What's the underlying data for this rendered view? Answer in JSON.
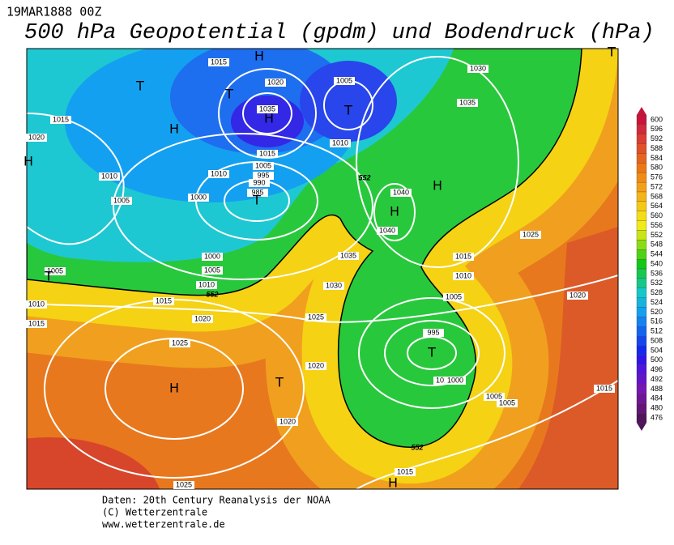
{
  "header": {
    "date": "19MAR1888 00Z",
    "title": "500 hPa Geopotential (gpdm) und Bodendruck (hPa)"
  },
  "isobar_labels": [
    1015,
    1020,
    1005,
    1035,
    1015,
    1020,
    1010,
    1015,
    1005,
    995,
    990,
    985,
    1010,
    1010,
    1005,
    1000,
    1030,
    1035,
    1040,
    1040,
    1025,
    1035,
    1030,
    1015,
    1010,
    1005,
    1020,
    1000,
    1005,
    1010,
    1005,
    1010,
    1015,
    1015,
    1020,
    1025,
    995,
    1020,
    1010,
    1000,
    1025,
    1020,
    1005,
    1005,
    1015,
    1015,
    1025
  ],
  "height_labels": [
    552,
    552,
    552
  ],
  "centers": [
    "H",
    "T",
    "T",
    "H",
    "T",
    "H",
    "T",
    "H",
    "H",
    "T",
    "H",
    "T",
    "H",
    "H",
    "T",
    "T"
  ],
  "colorbar": {
    "levels": [
      600,
      596,
      592,
      588,
      584,
      580,
      576,
      572,
      568,
      564,
      560,
      556,
      552,
      548,
      544,
      540,
      536,
      532,
      528,
      524,
      520,
      516,
      512,
      508,
      504,
      500,
      496,
      492,
      488,
      484,
      480,
      476
    ],
    "colors": [
      "#c8143c",
      "#d2283c",
      "#dc3c32",
      "#e15028",
      "#e6641e",
      "#eb7814",
      "#f08c14",
      "#f5a014",
      "#f5b414",
      "#f5c814",
      "#f5dc14",
      "#f0eb14",
      "#c8e614",
      "#8cdc14",
      "#50d214",
      "#14c814",
      "#14c850",
      "#14c88c",
      "#14c8c8",
      "#14b4dc",
      "#14a0f0",
      "#1482f0",
      "#1464f0",
      "#1446f0",
      "#1428f0",
      "#3214e6",
      "#5014dc",
      "#6414c8",
      "#7814b4",
      "#6e1496",
      "#641478",
      "#50145a"
    ]
  },
  "footer": [
    "Daten: 20th Century Reanalysis der NOAA",
    "(C) Wetterzentrale",
    "www.wetterzentrale.de"
  ]
}
